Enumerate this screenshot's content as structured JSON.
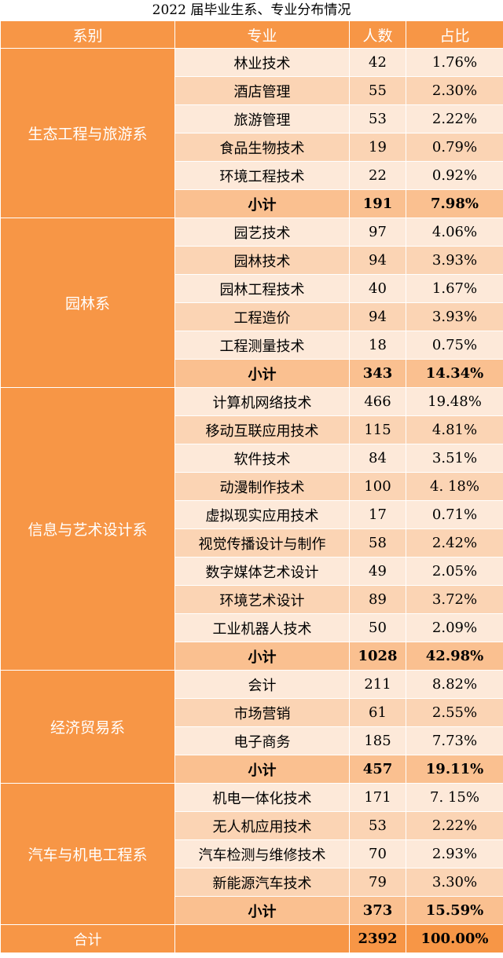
{
  "title": "2022  届毕业生系、专业分布情况",
  "headers": [
    "系别",
    "专业",
    "人数",
    "占比"
  ],
  "departments": [
    {
      "name": "生态工程与旅游系",
      "majors": [
        {
          "name": "林业技术",
          "count": "42",
          "pct": "1.76%"
        },
        {
          "name": "酒店管理",
          "count": "55",
          "pct": "2.30%"
        },
        {
          "name": "旅游管理",
          "count": "53",
          "pct": "2.22%"
        },
        {
          "name": "食品生物技术",
          "count": "19",
          "pct": "0.79%"
        },
        {
          "name": "环境工程技术",
          "count": "22",
          "pct": "0.92%"
        }
      ],
      "subtotal": {
        "label": "小计",
        "count": "191",
        "pct": "7.98%"
      }
    },
    {
      "name": "园林系",
      "majors": [
        {
          "name": "园艺技术",
          "count": "97",
          "pct": "4.06%"
        },
        {
          "name": "园林技术",
          "count": "94",
          "pct": "3.93%"
        },
        {
          "name": "园林工程技术",
          "count": "40",
          "pct": "1.67%"
        },
        {
          "name": "工程造价",
          "count": "94",
          "pct": "3.93%"
        },
        {
          "name": "工程测量技术",
          "count": "18",
          "pct": "0.75%"
        }
      ],
      "subtotal": {
        "label": "小计",
        "count": "343",
        "pct": "14.34%"
      }
    },
    {
      "name": "信息与艺术设计系",
      "majors": [
        {
          "name": "计算机网络技术",
          "count": "466",
          "pct": "19.48%"
        },
        {
          "name": "移动互联应用技术",
          "count": "115",
          "pct": "4.81%"
        },
        {
          "name": "软件技术",
          "count": "84",
          "pct": "3.51%"
        },
        {
          "name": "动漫制作技术",
          "count": "100",
          "pct": "4. 18%"
        },
        {
          "name": "虚拟现实应用技术",
          "count": "17",
          "pct": "0.71%"
        },
        {
          "name": "视觉传播设计与制作",
          "count": "58",
          "pct": "2.42%"
        },
        {
          "name": "数字媒体艺术设计",
          "count": "49",
          "pct": "2.05%"
        },
        {
          "name": "环境艺术设计",
          "count": "89",
          "pct": "3.72%"
        },
        {
          "name": "工业机器人技术",
          "count": "50",
          "pct": "2.09%"
        }
      ],
      "subtotal": {
        "label": "小计",
        "count": "1028",
        "pct": "42.98%"
      }
    },
    {
      "name": "经济贸易系",
      "majors": [
        {
          "name": "会计",
          "count": "211",
          "pct": "8.82%"
        },
        {
          "name": "市场营销",
          "count": "61",
          "pct": "2.55%"
        },
        {
          "name": "电子商务",
          "count": "185",
          "pct": "7.73%"
        }
      ],
      "subtotal": {
        "label": "小计",
        "count": "457",
        "pct": "19.11%"
      }
    },
    {
      "name": "汽车与机电工程系",
      "majors": [
        {
          "name": "机电一体化技术",
          "count": "171",
          "pct": "7. 15%"
        },
        {
          "name": "无人机应用技术",
          "count": "53",
          "pct": "2.22%"
        },
        {
          "name": "汽车检测与维修技术",
          "count": "70",
          "pct": "2.93%"
        },
        {
          "name": "新能源汽车技术",
          "count": "79",
          "pct": "3.30%"
        }
      ],
      "subtotal": {
        "label": "小计",
        "count": "373",
        "pct": "15.59%"
      }
    }
  ],
  "total": {
    "label": "合计",
    "count": "2392",
    "pct": "100.00%"
  }
}
